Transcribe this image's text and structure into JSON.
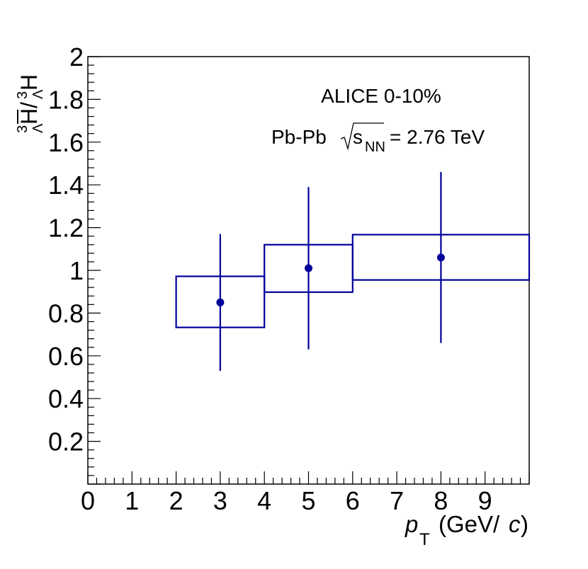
{
  "chart_data": {
    "type": "scatter",
    "title": "",
    "xlabel": "p_T (GeV/c)",
    "ylabel": "anti-hypertriton / hypertriton",
    "xlim": [
      0,
      10
    ],
    "ylim": [
      0,
      2
    ],
    "x_tick_labels": [
      "0",
      "1",
      "2",
      "3",
      "4",
      "5",
      "6",
      "7",
      "8",
      "9"
    ],
    "y_tick_labels": [
      "0.2",
      "0.4",
      "0.6",
      "0.8",
      "1",
      "1.2",
      "1.4",
      "1.6",
      "1.8",
      "2"
    ],
    "series": [
      {
        "name": "ratio",
        "points": [
          {
            "x": 3,
            "y": 0.85,
            "stat_err": 0.32,
            "bin": [
              2,
              4
            ],
            "sys_box": [
              0.733,
              0.972
            ]
          },
          {
            "x": 5,
            "y": 1.01,
            "stat_err": 0.38,
            "bin": [
              4,
              6
            ],
            "sys_box": [
              0.898,
              1.12
            ]
          },
          {
            "x": 8,
            "y": 1.06,
            "stat_err": 0.4,
            "bin": [
              6,
              10
            ],
            "sys_box": [
              0.955,
              1.167
            ]
          }
        ]
      }
    ],
    "annotations": {
      "experiment": "ALICE 0-10%",
      "system": "Pb-Pb",
      "energy_label": "s",
      "energy_subscript": "NN",
      "energy_value": "= 2.76 TeV"
    },
    "axis_title_x": {
      "p": "p",
      "sub": "T",
      "units_open": "(GeV/",
      "c": "c",
      "units_close": ")"
    },
    "axis_title_y": {
      "sup1": "3",
      "sub1": "Λ",
      "H1": "H",
      "slash": "/",
      "sup2": "3",
      "sub2": "Λ",
      "H2": "H"
    }
  },
  "colors": {
    "data": "#00009a",
    "axis": "#000000"
  }
}
